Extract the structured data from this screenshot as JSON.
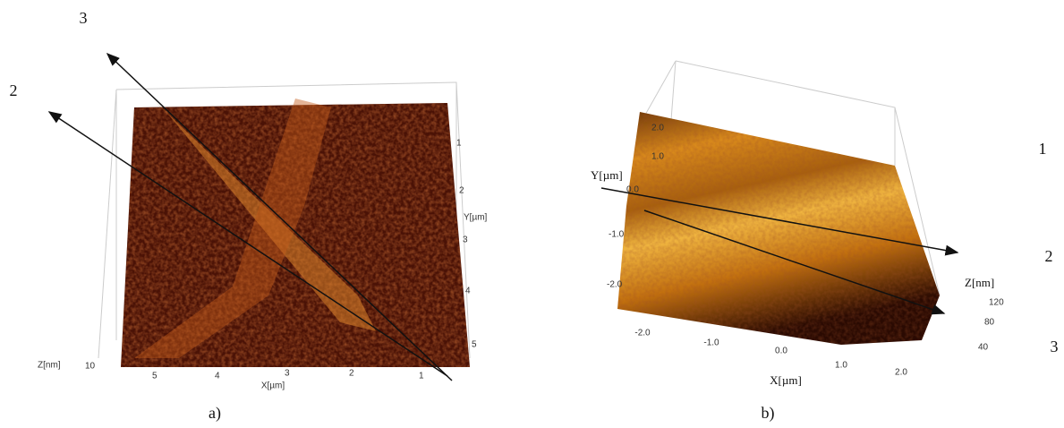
{
  "panel_a": {
    "caption": "a)",
    "markers": [
      "3",
      "2"
    ],
    "z_label": "Z[nm]",
    "z_ticks": [
      "10"
    ],
    "x_label": "X[µm]",
    "x_ticks": [
      "5",
      "4",
      "3",
      "2",
      "1"
    ],
    "y_label": "Y[µm]",
    "y_ticks": [
      "1",
      "2",
      "3",
      "4",
      "5"
    ]
  },
  "panel_b": {
    "caption": "b)",
    "markers": [
      "1",
      "2",
      "3"
    ],
    "y_label": "Y[µm]",
    "y_ticks": [
      "2.0",
      "1.0",
      "0.0",
      "-1.0",
      "-2.0"
    ],
    "x_label": "X[µm]",
    "x_ticks": [
      "-2.0",
      "-1.0",
      "0.0",
      "1.0",
      "2.0"
    ],
    "z_label": "Z[nm]",
    "z_ticks": [
      "120",
      "80",
      "40"
    ]
  }
}
